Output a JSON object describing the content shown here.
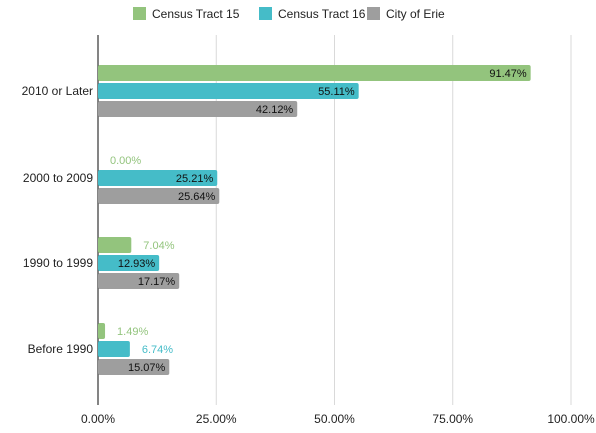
{
  "chart_data": {
    "type": "bar",
    "orientation": "horizontal",
    "categories": [
      "2010 or Later",
      "2000 to 2009",
      "1990 to 1999",
      "Before 1990"
    ],
    "series": [
      {
        "name": "Census Tract 15",
        "color": "#93c47d",
        "values": [
          91.47,
          0.0,
          7.04,
          1.49
        ]
      },
      {
        "name": "Census Tract 16",
        "color": "#45bcc8",
        "values": [
          55.11,
          25.21,
          12.93,
          6.74
        ]
      },
      {
        "name": "City of Erie",
        "color": "#9e9e9e",
        "values": [
          42.12,
          25.64,
          17.17,
          15.07
        ]
      }
    ],
    "data_labels": [
      [
        "91.47%",
        "0.00%",
        "7.04%",
        "1.49%"
      ],
      [
        "55.11%",
        "25.21%",
        "12.93%",
        "6.74%"
      ],
      [
        "42.12%",
        "25.64%",
        "17.17%",
        "15.07%"
      ]
    ],
    "xticks": [
      0,
      25,
      50,
      75,
      100
    ],
    "xtick_labels": [
      "0.00%",
      "25.00%",
      "50.00%",
      "75.00%",
      "100.00%"
    ],
    "xlim": [
      0,
      100
    ],
    "grid": true,
    "legend_position": "top",
    "title": "",
    "xlabel": "",
    "ylabel": ""
  }
}
